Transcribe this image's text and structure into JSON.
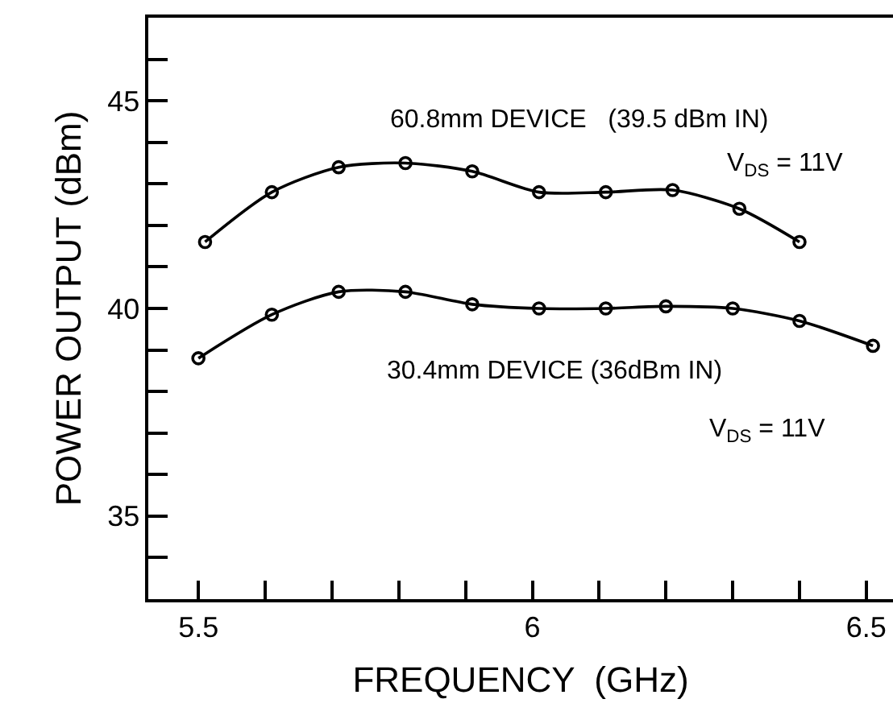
{
  "chart_data": {
    "type": "line",
    "xlabel": "FREQUENCY  (GHz)",
    "ylabel": "POWER OUTPUT (dBm)",
    "xlim": [
      5.425,
      6.54
    ],
    "ylim": [
      33,
      47
    ],
    "xticks": [
      5.5,
      {
        "value": 5.6,
        "label": null
      },
      {
        "value": 5.7,
        "label": null
      },
      {
        "value": 5.8,
        "label": null
      },
      {
        "value": 5.9,
        "label": null
      },
      6,
      {
        "value": 6.1,
        "label": null
      },
      {
        "value": 6.2,
        "label": null
      },
      {
        "value": 6.3,
        "label": null
      },
      {
        "value": 6.4,
        "label": null
      },
      6.5
    ],
    "yticks": [
      {
        "value": 34,
        "label": null
      },
      35,
      {
        "value": 36,
        "label": null
      },
      {
        "value": 37,
        "label": null
      },
      {
        "value": 38,
        "label": null
      },
      {
        "value": 39,
        "label": null
      },
      40,
      {
        "value": 41,
        "label": null
      },
      {
        "value": 42,
        "label": null
      },
      {
        "value": 43,
        "label": null
      },
      {
        "value": 44,
        "label": null
      },
      45,
      {
        "value": 46,
        "label": null
      }
    ],
    "grid": false,
    "marker": "circle",
    "line_style": "solid",
    "series": [
      {
        "color": "#000000",
        "x": [
          5.51,
          5.61,
          5.71,
          5.81,
          5.91,
          6.01,
          6.11,
          6.21,
          6.31,
          6.4
        ],
        "values": [
          41.6,
          42.8,
          43.4,
          43.5,
          43.3,
          42.8,
          42.8,
          42.85,
          42.4,
          41.6
        ]
      },
      {
        "color": "#000000",
        "x": [
          5.5,
          5.61,
          5.71,
          5.81,
          5.91,
          6.01,
          6.11,
          6.2,
          6.3,
          6.4,
          6.51
        ],
        "values": [
          38.8,
          39.85,
          40.4,
          40.4,
          40.1,
          40.0,
          40.0,
          40.05,
          40.0,
          39.7,
          39.1
        ]
      }
    ],
    "annotations": [
      "60.8mm DEVICE   (39.5 dBm IN)",
      "V$_{DS}$ = 11V",
      "30.4mm DEVICE (36dBm IN)",
      "V$_{DS}$ = 11V"
    ]
  }
}
